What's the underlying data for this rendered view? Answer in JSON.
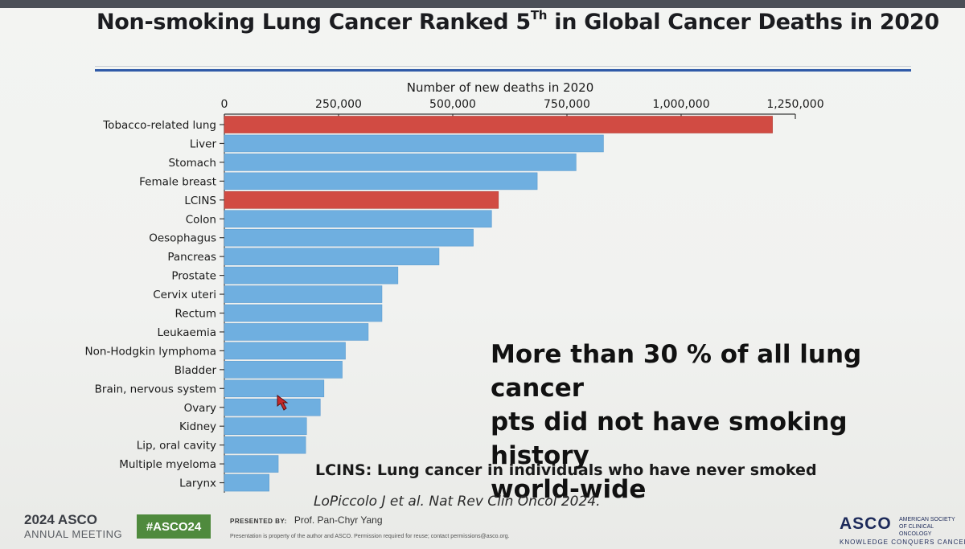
{
  "slide": {
    "title_main": "Non-smoking Lung Cancer Ranked 5",
    "title_sup": "Th",
    "title_rest": " in Global Cancer Deaths in 2020",
    "callout_line1": "More than 30 % of all lung cancer",
    "callout_line2": "pts did not have smoking history",
    "callout_line3": "world-wide",
    "lcins_note": "LCINS: Lung cancer in individuals who have never smoked",
    "citation": "LoPiccolo J et al. Nat Rev Clin Oncol 2024."
  },
  "footer": {
    "year": "2024 ASCO",
    "meeting": "ANNUAL MEETING",
    "hashtag": "#ASCO24",
    "presented_by_label": "PRESENTED BY:",
    "presenter": "Prof. Pan-Chyr Yang",
    "disclaimer": "Presentation is property of the author and ASCO. Permission required for reuse; contact permissions@asco.org.",
    "org_logo": "ASCO",
    "org_name": "AMERICAN SOCIETY OF CLINICAL ONCOLOGY",
    "tagline": "KNOWLEDGE CONQUERS CANCER"
  },
  "chart_data": {
    "type": "bar",
    "orientation": "horizontal",
    "title": "Number of new deaths in 2020",
    "xlim": [
      0,
      1250000
    ],
    "xticks": [
      0,
      250000,
      500000,
      750000,
      1000000,
      1250000
    ],
    "xtick_labels": [
      "0",
      "250,000",
      "500,000",
      "750,000",
      "1,000,000",
      "1,250,000"
    ],
    "categories": [
      "Tobacco-related lung",
      "Liver",
      "Stomach",
      "Female breast",
      "LCINS",
      "Colon",
      "Oesophagus",
      "Pancreas",
      "Prostate",
      "Cervix uteri",
      "Rectum",
      "Leukaemia",
      "Non-Hodgkin lymphoma",
      "Bladder",
      "Brain, nervous system",
      "Ovary",
      "Kidney",
      "Lip, oral cavity",
      "Multiple myeloma",
      "Larynx"
    ],
    "values": [
      1200000,
      830000,
      770000,
      685000,
      600000,
      585000,
      545000,
      470000,
      380000,
      345000,
      345000,
      315000,
      265000,
      258000,
      218000,
      210000,
      180000,
      178000,
      118000,
      98000
    ],
    "highlight": [
      "Tobacco-related lung",
      "LCINS"
    ],
    "colors": {
      "default": "#6fafe0",
      "highlight": "#d14b43"
    }
  }
}
